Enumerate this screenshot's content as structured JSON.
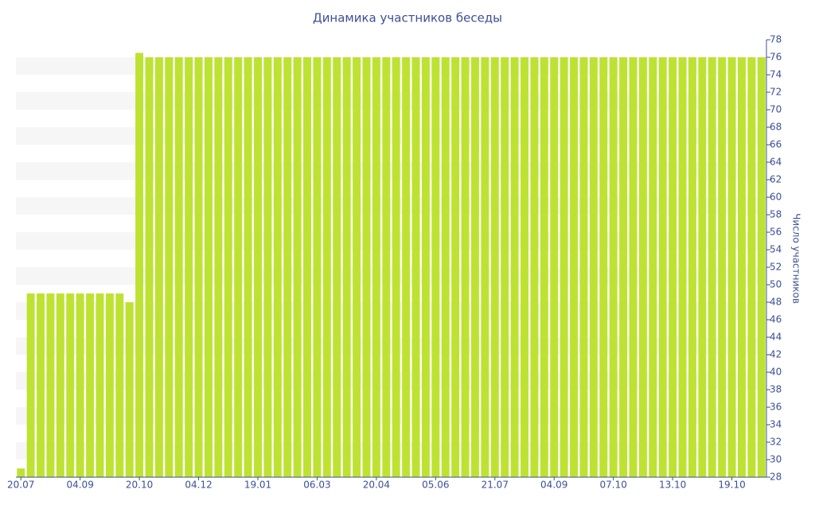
{
  "chart_data": {
    "type": "bar",
    "title": "Динамика участников беседы",
    "y_label": "Число участников",
    "categories": [
      "20.07",
      null,
      null,
      null,
      null,
      null,
      "04.09",
      null,
      null,
      null,
      null,
      null,
      "20.10",
      null,
      null,
      null,
      null,
      null,
      "04.12",
      null,
      null,
      null,
      null,
      null,
      "19.01",
      null,
      null,
      null,
      null,
      null,
      "06.03",
      null,
      null,
      null,
      null,
      null,
      "20.04",
      null,
      null,
      null,
      null,
      null,
      "05.06",
      null,
      null,
      null,
      null,
      null,
      "21.07",
      null,
      null,
      null,
      null,
      null,
      "04.09",
      null,
      null,
      null,
      null,
      null,
      "07.10",
      null,
      null,
      null,
      null,
      null,
      "13.10",
      null,
      null,
      null,
      null,
      null,
      "19.10",
      null,
      null,
      null
    ],
    "values": [
      29,
      49,
      49,
      49,
      49,
      49,
      49,
      49,
      49,
      49,
      49,
      48,
      76.5,
      76,
      76,
      76,
      76,
      76,
      76,
      76,
      76,
      76,
      76,
      76,
      76,
      76,
      76,
      76,
      76,
      76,
      76,
      76,
      76,
      76,
      76,
      76,
      76,
      76,
      76,
      76,
      76,
      76,
      76,
      76,
      76,
      76,
      76,
      76,
      76,
      76,
      76,
      76,
      76,
      76,
      76,
      76,
      76,
      76,
      76,
      76,
      76,
      76,
      76,
      76,
      76,
      76,
      76,
      76,
      76,
      76,
      76,
      76,
      76,
      76,
      76,
      76
    ],
    "color": "#bee232",
    "ylim": [
      28,
      78
    ],
    "yticks": [
      28,
      30,
      32,
      34,
      36,
      38,
      40,
      42,
      44,
      46,
      48,
      50,
      52,
      54,
      56,
      58,
      60,
      62,
      64,
      66,
      68,
      70,
      72,
      74,
      76,
      78
    ],
    "grid": true
  }
}
